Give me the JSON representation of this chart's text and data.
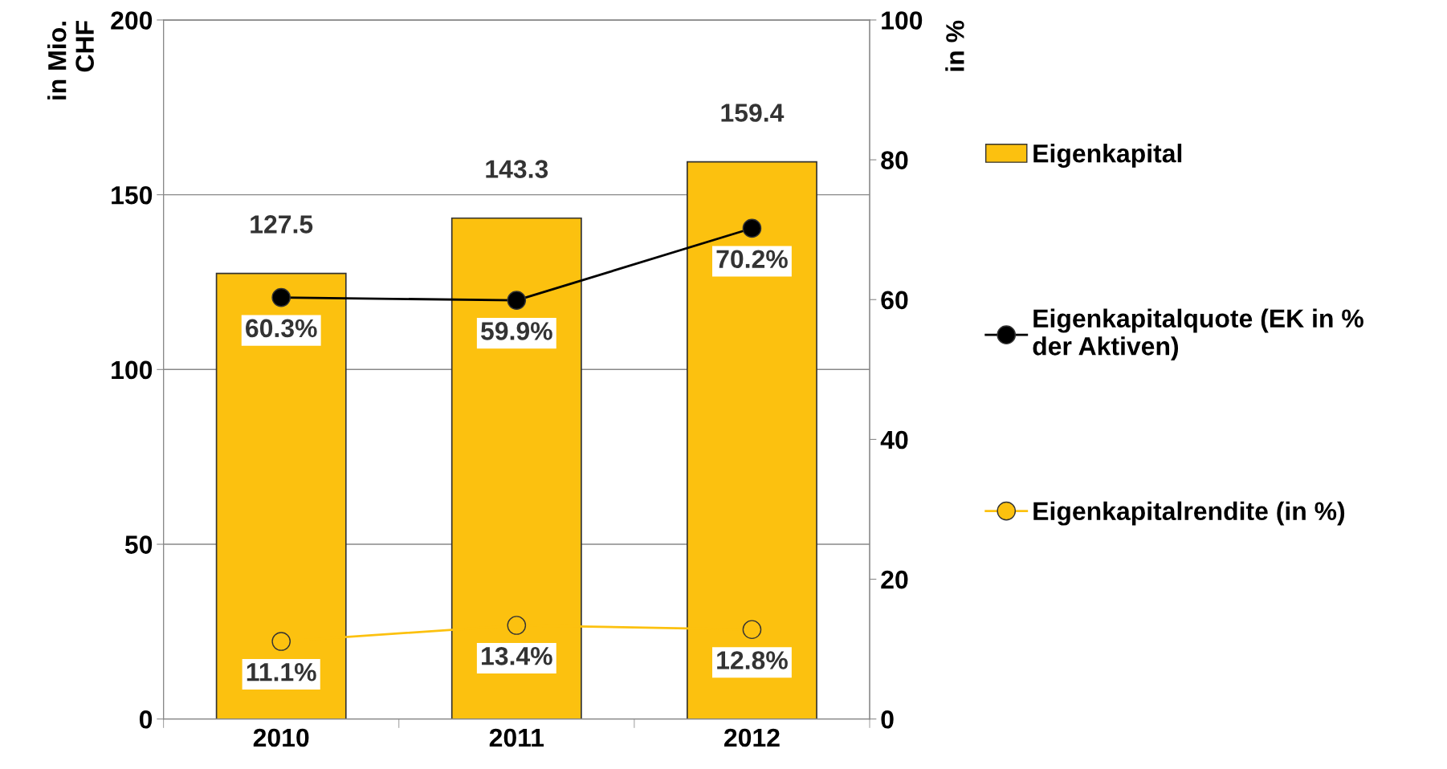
{
  "chart_data": {
    "type": "bar",
    "categories": [
      "2010",
      "2011",
      "2012"
    ],
    "ylabel": "in Mio.\nCHF",
    "y2label": "in %",
    "ylim": [
      0,
      200
    ],
    "yticks": [
      0,
      50,
      100,
      150,
      200
    ],
    "y2lim": [
      0,
      100
    ],
    "y2ticks": [
      0,
      20,
      40,
      60,
      80,
      100
    ],
    "grid": "y",
    "legend": "right",
    "marker": "circle",
    "series": [
      {
        "name": "Eigenkapital",
        "color": "#fcc10f",
        "values": [
          127.5,
          143.3,
          159.4
        ],
        "value_labels": [
          "127.5",
          "143.3",
          "159.4"
        ]
      },
      {
        "name": "Eigenkapitalquote (EK in %\nder Aktiven)",
        "type": "line",
        "axis": "y2",
        "color": "#000000",
        "values": [
          60.3,
          59.9,
          70.2
        ],
        "value_labels": [
          "60.3%",
          "59.9%",
          "70.2%"
        ]
      },
      {
        "name": "Eigenkapitalrendite (in %)",
        "type": "line",
        "axis": "y2",
        "color": "#fcc10f",
        "values": [
          11.1,
          13.4,
          12.8
        ],
        "value_labels": [
          "11.1%",
          "13.4%",
          "12.8%"
        ]
      }
    ]
  }
}
